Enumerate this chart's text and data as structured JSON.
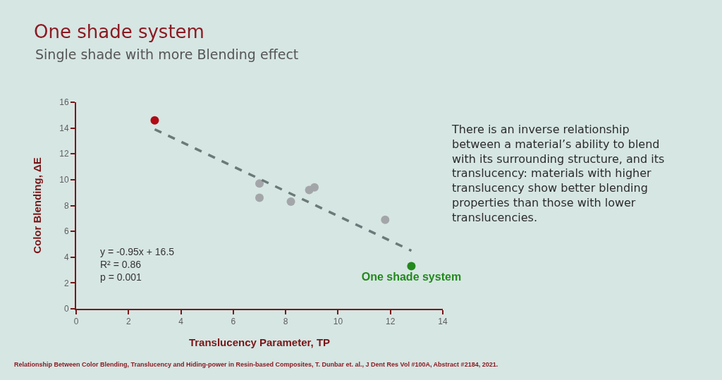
{
  "chart_data": {
    "type": "scatter",
    "title": "One shade system",
    "subtitle": "Single shade with more Blending effect",
    "xlabel": "Translucency Parameter, TP",
    "ylabel": "Color Blending, ΔE",
    "xlim": [
      0,
      14
    ],
    "xticks": [
      0,
      2,
      4,
      6,
      8,
      10,
      12,
      14
    ],
    "ylim": [
      0,
      16
    ],
    "yticks": [
      0,
      2,
      4,
      6,
      8,
      10,
      12,
      14,
      16
    ],
    "grid": false,
    "marker": "circle",
    "series": [
      {
        "color": "#b00a14",
        "x": [
          3.0
        ],
        "values": [
          14.6
        ]
      },
      {
        "color": "#a3a6a8",
        "x": [
          7.0,
          7.0,
          8.2,
          8.9,
          9.1,
          11.8
        ],
        "values": [
          9.7,
          8.6,
          8.3,
          9.2,
          9.4,
          6.9
        ]
      },
      {
        "name": "One shade system",
        "color": "#23891c",
        "x": [
          12.8
        ],
        "values": [
          3.3
        ]
      },
      {
        "type": "line",
        "color": "#6b7a78",
        "x": [
          3.0,
          12.8
        ],
        "values": [
          13.9,
          4.5
        ],
        "line_style": "dashed",
        "marker": "none"
      }
    ],
    "annotations": [
      "y = -0.95x + 16.5\nR² = 0.86\np = 0.001",
      "There is an inverse relationship\nbetween a material’s ability to blend\nwith its surrounding structure, and its\ntranslucency: materials with higher\ntranslucency show better blending\nproperties than those with lower\ntranslucencies.",
      "Relationship Between Color Blending, Translucency and Hiding-power in Resin-based Composites, T. Dunbar et. al., J Dent Res Vol #100A, Abstract #2184, 2021."
    ]
  }
}
